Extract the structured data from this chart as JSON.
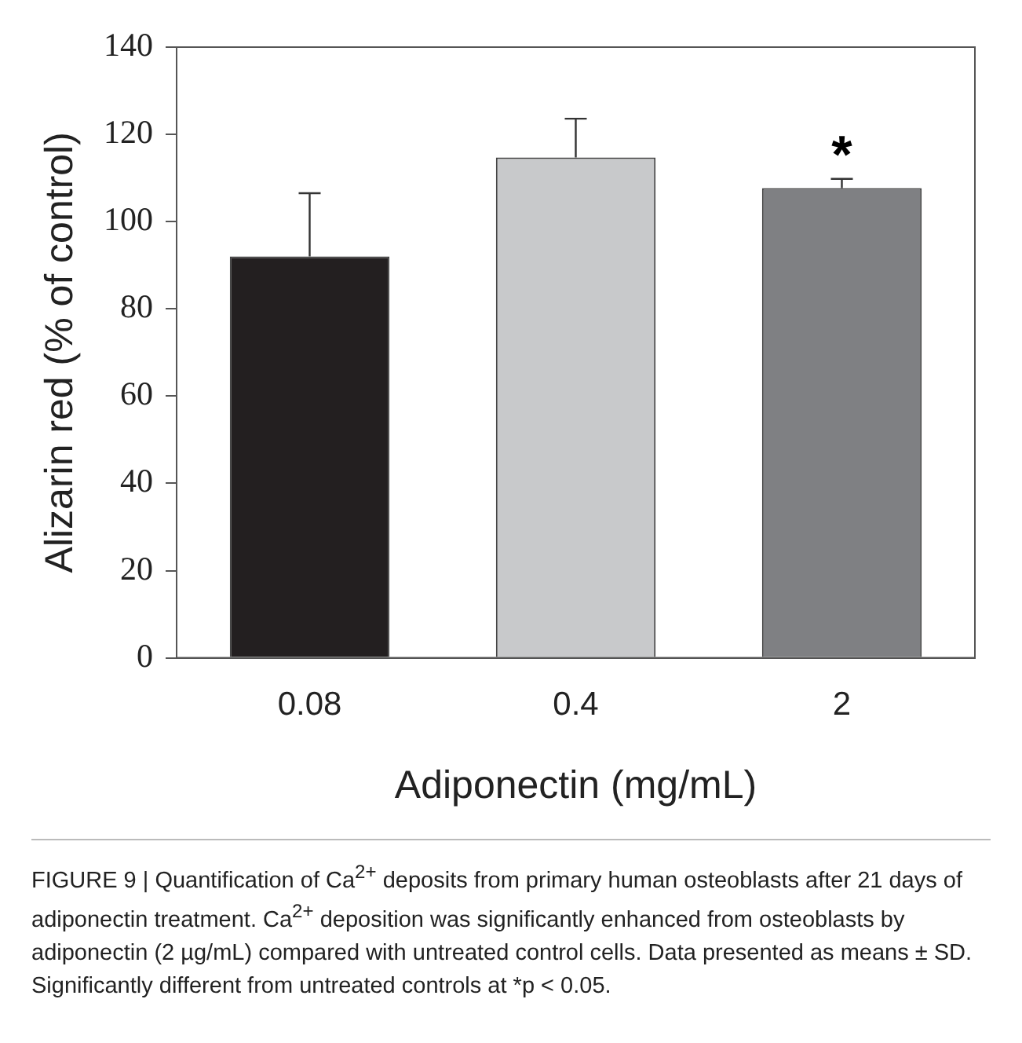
{
  "chart_data": {
    "type": "bar",
    "xlabel": "Adiponectin (mg/mL)",
    "ylabel": "Alizarin red (% of control)",
    "categories": [
      "0.08",
      "0.4",
      "2"
    ],
    "values": [
      92,
      114.7,
      107.7
    ],
    "colors": [
      "#231f20",
      "#c8c9cb",
      "#7f8083"
    ],
    "errors": [
      [
        92,
        106.5
      ],
      [
        114.7,
        123.6
      ],
      [
        107.7,
        109.8
      ]
    ],
    "ylim": [
      0,
      140
    ],
    "yticks": [
      0,
      20,
      40,
      60,
      80,
      100,
      120,
      140
    ],
    "grid": false,
    "legend": false,
    "annotations": [
      {
        "text": "*",
        "x": "2",
        "y": 109.8
      },
      "FIGURE 9 | Quantification of Ca$^{2+}$ deposits from primary human osteoblasts after 21 days of adiponectin treatment. Ca$^{2+}$ deposition was significantly enhanced from osteoblasts by adiponectin (2 µg/mL) compared with untreated control cells. Data presented as means ± SD. Significantly different from untreated controls at *p < 0.05."
    ]
  }
}
